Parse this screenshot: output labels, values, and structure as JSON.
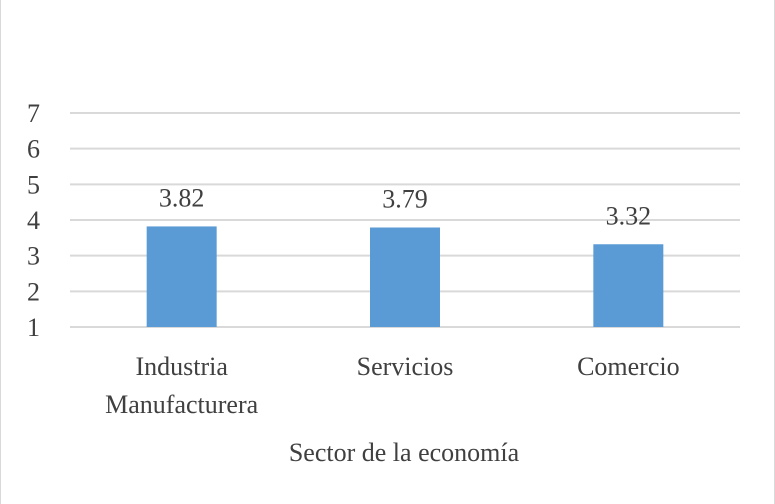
{
  "chart_data": {
    "type": "bar",
    "categories": [
      [
        "Industria",
        "Manufacturera"
      ],
      [
        "Servicios"
      ],
      [
        "Comercio"
      ]
    ],
    "values": [
      3.82,
      3.79,
      3.32
    ],
    "data_labels": [
      "3.82",
      "3.79",
      "3.32"
    ],
    "xlabel": "Sector de la economía",
    "ylabel": "",
    "ylim": [
      1,
      7
    ],
    "yticks": [
      "1",
      "2",
      "3",
      "4",
      "5",
      "6",
      "7"
    ],
    "grid": true,
    "legend": "none",
    "bar_color": "#5b9bd5",
    "grid_color": "#d9d9d9",
    "text_color": "#404040"
  }
}
